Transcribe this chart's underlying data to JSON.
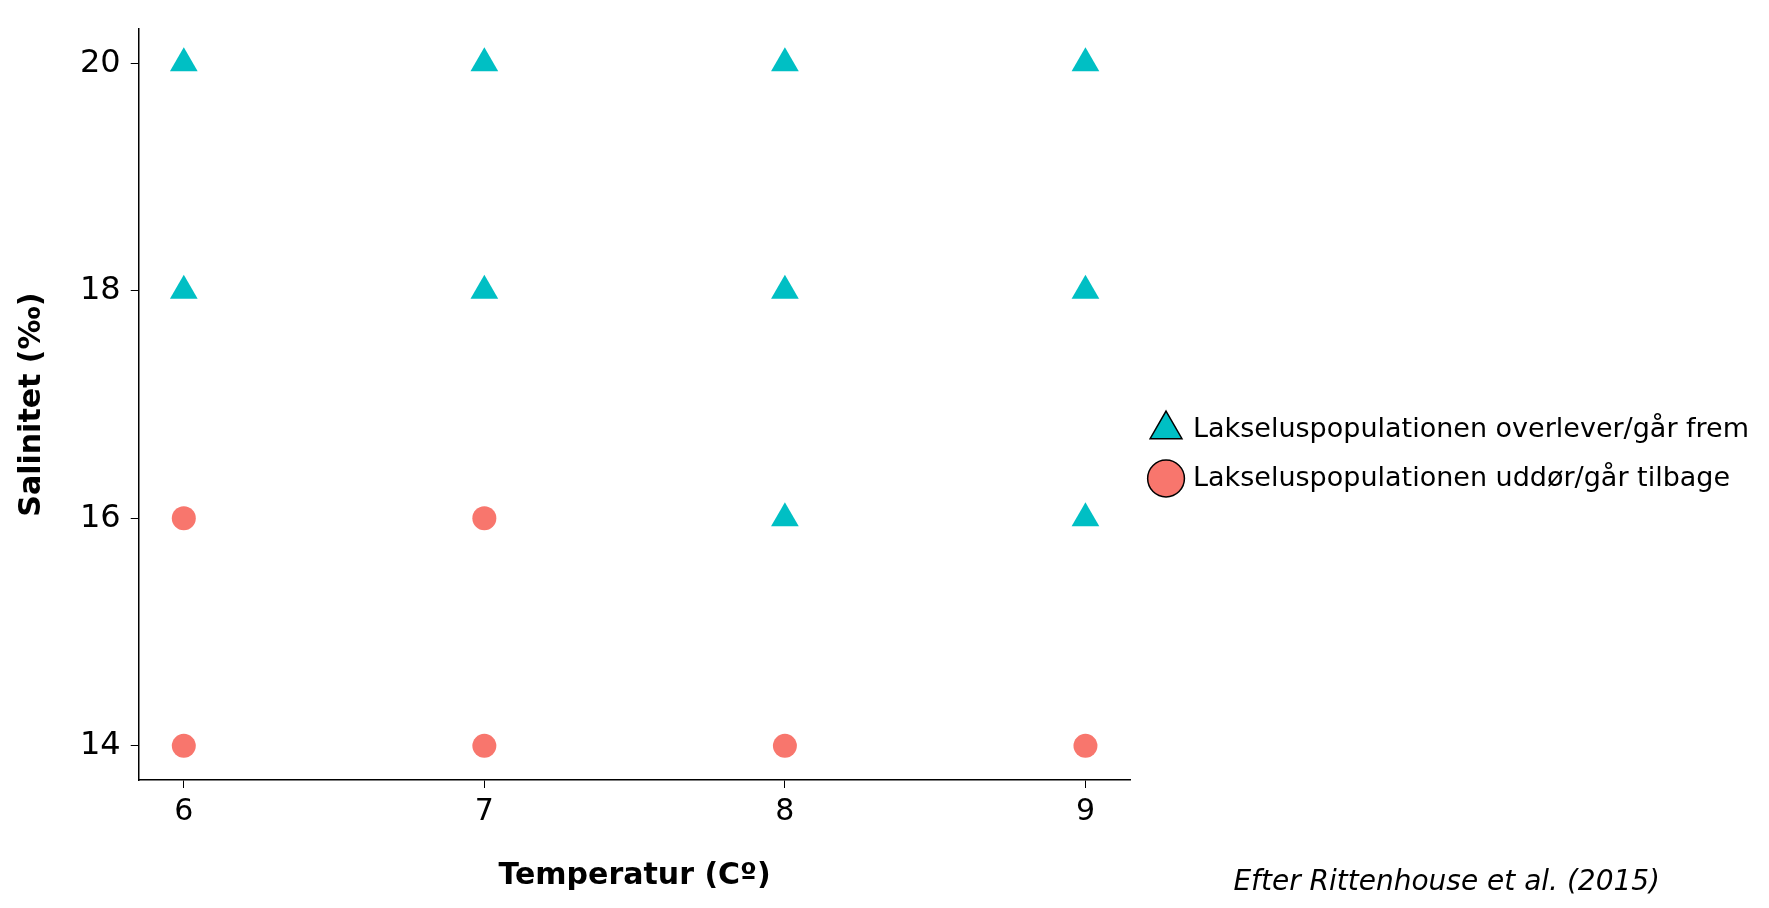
{
  "chart_data": {
    "type": "scatter",
    "xlabel": "Temperatur (Cº)",
    "ylabel": "Salinitet (‰)",
    "xlim": [
      5.85,
      9.15
    ],
    "xticks": [
      6,
      7,
      8,
      9
    ],
    "ylim": [
      13.7,
      20.3
    ],
    "yticks": [
      14,
      16,
      18,
      20
    ],
    "grid": false,
    "legend": "right",
    "annotations": [
      "Efter Rittenhouse et al. (2015)"
    ],
    "series": [
      {
        "name": "Lakseluspopulationen overlever/går frem",
        "color": "#00bfc4",
        "marker": "triangle",
        "x": [
          6,
          7,
          8,
          9,
          6,
          7,
          8,
          9,
          8,
          9
        ],
        "values": [
          20,
          20,
          20,
          20,
          18,
          18,
          18,
          18,
          16,
          16
        ]
      },
      {
        "name": "Lakseluspopulationen uddør/går tilbage",
        "color": "#f8766d",
        "marker": "circle",
        "x": [
          6,
          7,
          6,
          7,
          8,
          9
        ],
        "values": [
          16,
          16,
          14,
          14,
          14,
          14
        ]
      }
    ]
  }
}
